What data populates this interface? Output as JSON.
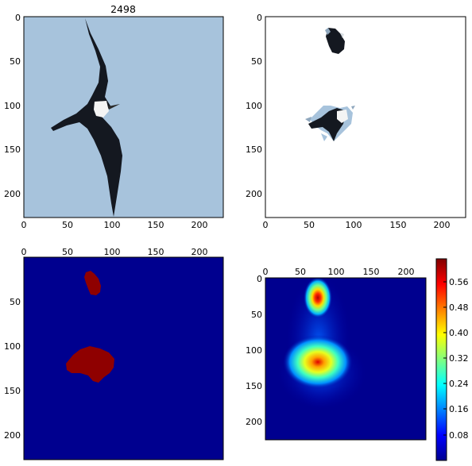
{
  "chart_data": [
    {
      "type": "image",
      "panel": "top-left",
      "title": "2498",
      "content": "photo of a frigatebird in flight against a pale blue sky",
      "x_ticks": [
        0,
        50,
        100,
        150,
        200
      ],
      "y_ticks": [
        0,
        50,
        100,
        150,
        200
      ],
      "x_tick_position": "bottom",
      "xlim": [
        0,
        227
      ],
      "ylim": [
        227,
        0
      ],
      "colors": {
        "sky": "#a7c3dc",
        "bird": "#141820",
        "chest": "#f4f4f4"
      }
    },
    {
      "type": "image",
      "panel": "top-right",
      "content": "masked photo: only two bird regions visible on white",
      "x_ticks": [
        0,
        50,
        100,
        150,
        200
      ],
      "y_ticks": [
        0,
        50,
        100,
        150,
        200
      ],
      "x_tick_position": "bottom",
      "xlim": [
        0,
        227
      ],
      "ylim": [
        227,
        0
      ],
      "regions": [
        {
          "name": "head-region",
          "x_range": [
            67,
            87
          ],
          "y_range": [
            10,
            40
          ]
        },
        {
          "name": "body-region",
          "x_range": [
            50,
            102
          ],
          "y_range": [
            100,
            140
          ]
        }
      ]
    },
    {
      "type": "heatmap",
      "panel": "bottom-left",
      "content": "binary mask",
      "x_ticks": [
        0,
        50,
        100,
        150,
        200
      ],
      "y_ticks": [
        50,
        100,
        150,
        200
      ],
      "x_tick_position": "top",
      "xlim": [
        0,
        227
      ],
      "ylim": [
        227,
        0
      ],
      "colors": {
        "background": "#00008f",
        "mask": "#8f0000"
      },
      "regions": [
        {
          "name": "mask-head",
          "x_range": [
            68,
            88
          ],
          "y_range": [
            15,
            38
          ]
        },
        {
          "name": "mask-body",
          "x_range": [
            48,
            102
          ],
          "y_range": [
            100,
            140
          ]
        }
      ]
    },
    {
      "type": "heatmap",
      "panel": "bottom-right",
      "content": "saliency map",
      "x_ticks": [
        0,
        50,
        100,
        150,
        200
      ],
      "y_ticks": [
        0,
        50,
        100,
        150,
        200
      ],
      "x_tick_position": "top",
      "xlim": [
        0,
        227
      ],
      "ylim": [
        227,
        0
      ],
      "colorbar": {
        "ticks": [
          "0.08",
          "0.16",
          "0.24",
          "0.32",
          "0.40",
          "0.48",
          "0.56"
        ],
        "range": [
          0,
          0.63
        ],
        "colormap": "jet"
      },
      "hotspots": [
        {
          "name": "hotspot-head",
          "center": [
            77,
            28
          ],
          "peak": 0.6
        },
        {
          "name": "hotspot-body",
          "center": [
            80,
            118
          ],
          "peak": 0.55
        }
      ]
    }
  ]
}
